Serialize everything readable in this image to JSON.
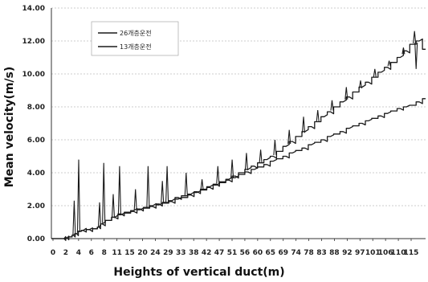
{
  "chart_data": {
    "type": "line",
    "xlabel": "Heights of vertical duct(m)",
    "ylabel": "Mean velocity(m/s)",
    "ylim": [
      0,
      14
    ],
    "y_ticks": [
      "0.00",
      "2.00",
      "4.00",
      "6.00",
      "8.00",
      "10.00",
      "12.00",
      "14.00"
    ],
    "x_ticks": [
      "0",
      "2",
      "4",
      "6",
      "8",
      "11",
      "15",
      "20",
      "24",
      "29",
      "33",
      "38",
      "42",
      "47",
      "51",
      "56",
      "60",
      "65",
      "69",
      "74",
      "78",
      "83",
      "88",
      "92",
      "97",
      "101",
      "106",
      "110",
      "115"
    ],
    "xlim": [
      0,
      118
    ],
    "grid": "horizontal dashed",
    "legend_position": "top-left",
    "series": [
      {
        "name": "26개층운전",
        "color": "#1a1a1a",
        "x": [
          0,
          4,
          5,
          6,
          7,
          8,
          9,
          10,
          12,
          14,
          15,
          16,
          18,
          20,
          22,
          24,
          26,
          28,
          30,
          32,
          34,
          36,
          38,
          40,
          42,
          44,
          46,
          48,
          50,
          52,
          54,
          56,
          58,
          60,
          62,
          64,
          66,
          68,
          70,
          72,
          74,
          76,
          78,
          80,
          82,
          84,
          86,
          88,
          90,
          92,
          94,
          96,
          98,
          100,
          102,
          104,
          106,
          108,
          110,
          112,
          114,
          116,
          118
        ],
        "y": [
          0,
          0,
          0.05,
          0.1,
          0.2,
          0.3,
          0.45,
          0.5,
          0.55,
          0.6,
          0.7,
          0.9,
          1.1,
          1.3,
          1.5,
          1.6,
          1.7,
          1.8,
          1.9,
          2.0,
          2.1,
          2.2,
          2.3,
          2.5,
          2.6,
          2.7,
          2.85,
          3.0,
          3.15,
          3.3,
          3.45,
          3.6,
          3.8,
          4.0,
          4.2,
          4.4,
          4.6,
          4.8,
          5.0,
          5.3,
          5.6,
          5.9,
          6.2,
          6.5,
          6.8,
          7.1,
          7.4,
          7.7,
          8.0,
          8.3,
          8.6,
          8.9,
          9.2,
          9.5,
          9.8,
          10.1,
          10.4,
          10.7,
          11.0,
          11.4,
          11.8,
          12.0,
          11.5
        ]
      },
      {
        "name": "13개층운전",
        "color": "#1a1a1a",
        "x": [
          0,
          4,
          5,
          6,
          7,
          8,
          9,
          10,
          12,
          14,
          15,
          16,
          18,
          20,
          22,
          24,
          26,
          28,
          30,
          32,
          34,
          36,
          38,
          40,
          42,
          44,
          46,
          48,
          50,
          52,
          54,
          56,
          58,
          60,
          62,
          64,
          66,
          68,
          70,
          72,
          74,
          76,
          78,
          80,
          82,
          84,
          86,
          88,
          90,
          92,
          94,
          96,
          98,
          100,
          102,
          104,
          106,
          108,
          110,
          112,
          114,
          116,
          118
        ],
        "y": [
          0,
          0,
          0.05,
          0.1,
          0.2,
          0.3,
          0.45,
          0.5,
          0.55,
          0.6,
          0.7,
          0.9,
          1.1,
          1.3,
          1.45,
          1.55,
          1.65,
          1.75,
          1.85,
          1.95,
          2.05,
          2.15,
          2.25,
          2.4,
          2.5,
          2.65,
          2.8,
          2.95,
          3.1,
          3.25,
          3.4,
          3.55,
          3.7,
          3.9,
          4.05,
          4.2,
          4.35,
          4.5,
          4.7,
          4.85,
          5.0,
          5.2,
          5.35,
          5.5,
          5.7,
          5.85,
          6.0,
          6.2,
          6.35,
          6.5,
          6.7,
          6.85,
          7.0,
          7.15,
          7.3,
          7.45,
          7.6,
          7.75,
          7.9,
          8.0,
          8.1,
          8.3,
          8.5
        ]
      }
    ],
    "spikes": [
      {
        "x": 7.2,
        "y": 2.3
      },
      {
        "x": 8.6,
        "y": 4.8
      },
      {
        "x": 15.2,
        "y": 2.2
      },
      {
        "x": 16.5,
        "y": 4.6
      },
      {
        "x": 19.5,
        "y": 2.7
      },
      {
        "x": 21.5,
        "y": 4.4
      },
      {
        "x": 26.5,
        "y": 3.0
      },
      {
        "x": 30.5,
        "y": 4.4
      },
      {
        "x": 35.0,
        "y": 3.5
      },
      {
        "x": 36.5,
        "y": 4.4
      },
      {
        "x": 42.5,
        "y": 4.0
      },
      {
        "x": 47.5,
        "y": 3.6
      },
      {
        "x": 52.5,
        "y": 4.4
      },
      {
        "x": 57.0,
        "y": 4.8
      },
      {
        "x": 61.5,
        "y": 5.2
      },
      {
        "x": 66.0,
        "y": 5.4
      },
      {
        "x": 70.5,
        "y": 6.0
      },
      {
        "x": 75.0,
        "y": 6.6
      },
      {
        "x": 79.5,
        "y": 7.4
      },
      {
        "x": 84.0,
        "y": 7.8
      },
      {
        "x": 88.5,
        "y": 8.4
      },
      {
        "x": 93.0,
        "y": 9.2
      },
      {
        "x": 97.5,
        "y": 9.6
      },
      {
        "x": 102.0,
        "y": 10.3
      },
      {
        "x": 106.5,
        "y": 10.8
      },
      {
        "x": 111.0,
        "y": 11.6
      },
      {
        "x": 114.5,
        "y": 12.6
      },
      {
        "x": 115.0,
        "y": 10.3
      }
    ]
  }
}
